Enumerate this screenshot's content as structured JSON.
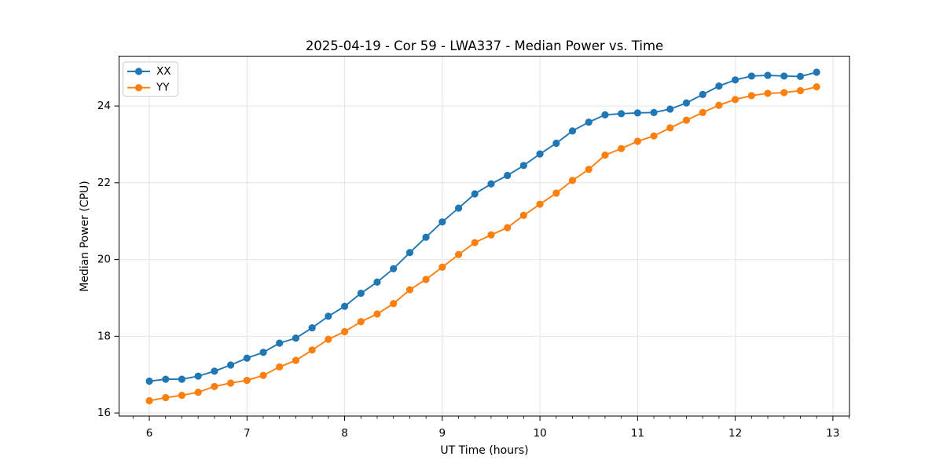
{
  "title": "2025-04-19 - Cor 59 - LWA337 - Median Power vs. Time",
  "colors": {
    "series_xx": "#1f77b4",
    "series_yy": "#ff7f0e",
    "grid": "#e4e4e4",
    "axis": "#000000",
    "legend_border": "#cccccc",
    "background": "#ffffff"
  },
  "chart_data": {
    "type": "line",
    "title": "2025-04-19 - Cor 59 - LWA337 - Median Power vs. Time",
    "xlabel": "UT Time (hours)",
    "ylabel": "Median Power (CPU)",
    "xlim": [
      5.69,
      13.17
    ],
    "ylim": [
      15.92,
      25.3
    ],
    "xticks": [
      6,
      7,
      8,
      9,
      10,
      11,
      12,
      13
    ],
    "yticks": [
      16,
      18,
      20,
      22,
      24
    ],
    "x_minor_step_hours": 0.1667,
    "grid": true,
    "legend_position": "upper left",
    "marker": "circle",
    "x": [
      6,
      6.167,
      6.333,
      6.5,
      6.667,
      6.833,
      7,
      7.167,
      7.333,
      7.5,
      7.667,
      7.833,
      8,
      8.167,
      8.333,
      8.5,
      8.667,
      8.833,
      9,
      9.167,
      9.333,
      9.5,
      9.667,
      9.833,
      10,
      10.167,
      10.333,
      10.5,
      10.667,
      10.833,
      11,
      11.167,
      11.333,
      11.5,
      11.667,
      11.833,
      12,
      12.167,
      12.333,
      12.5,
      12.667,
      12.833
    ],
    "series": [
      {
        "name": "XX",
        "color": "#1f77b4",
        "values": [
          16.83,
          16.88,
          16.88,
          16.96,
          17.09,
          17.25,
          17.43,
          17.58,
          17.82,
          17.95,
          18.22,
          18.52,
          18.78,
          19.12,
          19.41,
          19.76,
          20.18,
          20.58,
          20.98,
          21.34,
          21.71,
          21.97,
          22.19,
          22.45,
          22.75,
          23.03,
          23.35,
          23.58,
          23.77,
          23.8,
          23.82,
          23.83,
          23.92,
          24.08,
          24.3,
          24.52,
          24.68,
          24.78,
          24.8,
          24.78,
          24.77,
          24.88
        ]
      },
      {
        "name": "YY",
        "color": "#ff7f0e",
        "values": [
          16.32,
          16.4,
          16.46,
          16.54,
          16.69,
          16.78,
          16.85,
          16.98,
          17.2,
          17.37,
          17.64,
          17.92,
          18.12,
          18.38,
          18.58,
          18.85,
          19.21,
          19.48,
          19.8,
          20.13,
          20.44,
          20.64,
          20.83,
          21.15,
          21.44,
          21.73,
          22.06,
          22.35,
          22.72,
          22.89,
          23.08,
          23.22,
          23.43,
          23.63,
          23.83,
          24.02,
          24.17,
          24.27,
          24.33,
          24.35,
          24.4,
          24.5
        ]
      }
    ]
  }
}
